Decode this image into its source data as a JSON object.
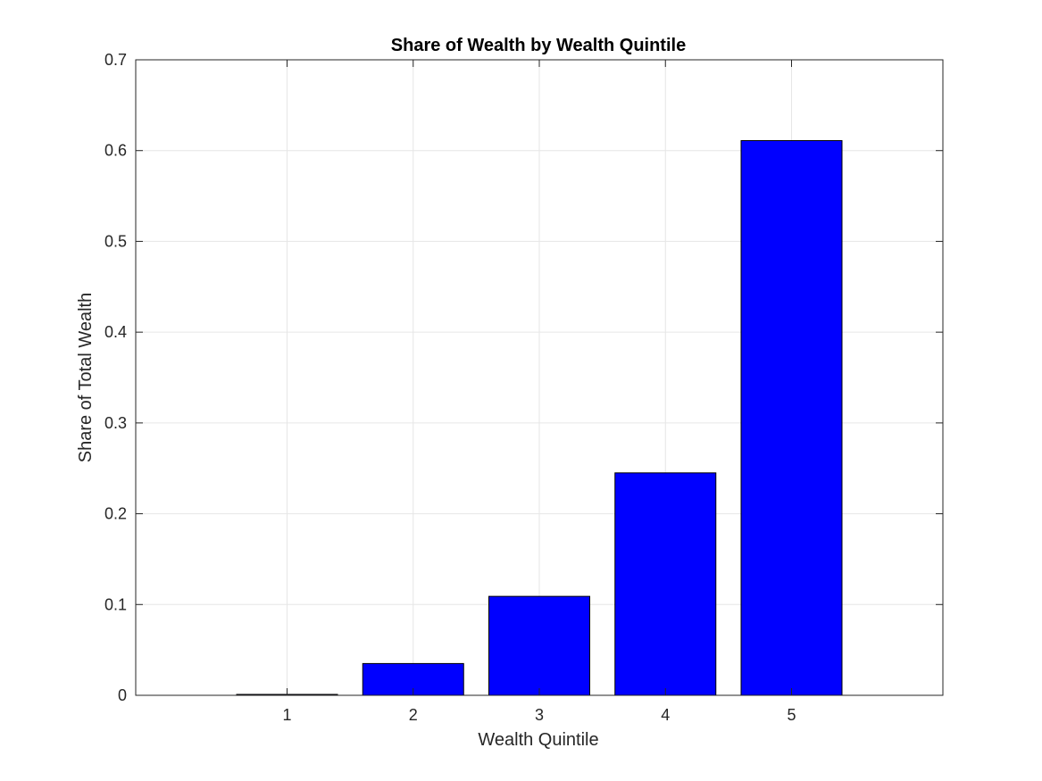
{
  "chart_data": {
    "type": "bar",
    "title": "Share of Wealth by Wealth Quintile",
    "xlabel": "Wealth Quintile",
    "ylabel": "Share of Total Wealth",
    "categories": [
      "1",
      "2",
      "3",
      "4",
      "5"
    ],
    "values": [
      0.001,
      0.035,
      0.109,
      0.245,
      0.611
    ],
    "xlim": [
      -0.2,
      6.2
    ],
    "ylim": [
      0,
      0.7
    ],
    "yticks": [
      0,
      0.1,
      0.2,
      0.3,
      0.4,
      0.5,
      0.6,
      0.7
    ],
    "ytick_labels": [
      "0",
      "0.1",
      "0.2",
      "0.3",
      "0.4",
      "0.5",
      "0.6",
      "0.7"
    ],
    "grid": true,
    "bar_color": "#0000ff"
  }
}
